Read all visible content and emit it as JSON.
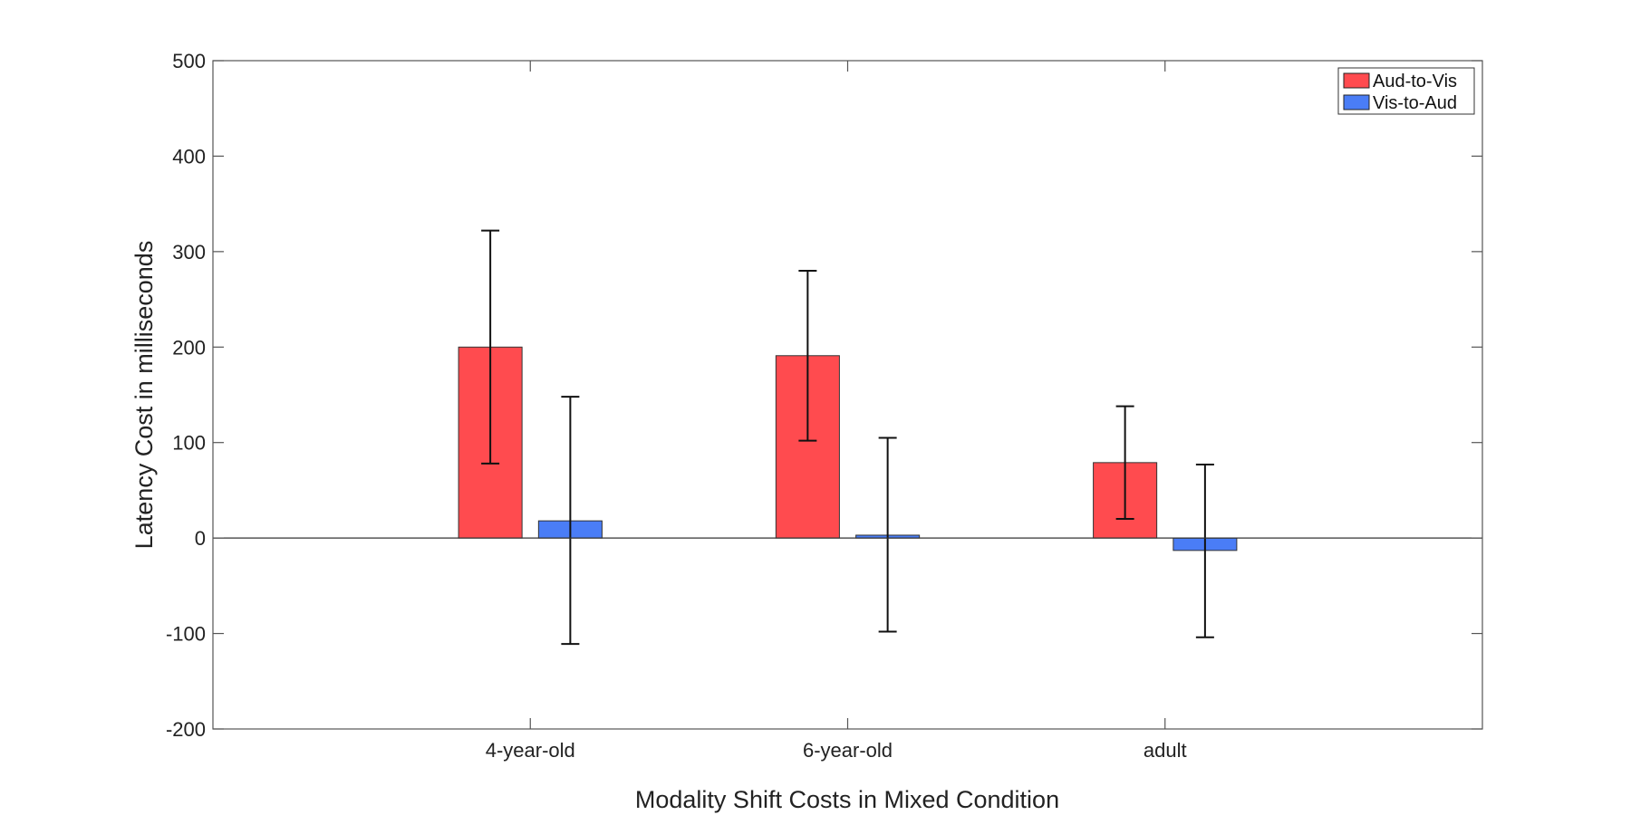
{
  "chart_data": {
    "type": "bar",
    "categories": [
      "4-year-old",
      "6-year-old",
      "adult"
    ],
    "series": [
      {
        "name": "Aud-to-Vis",
        "color": "#ff4b4f",
        "values": [
          200,
          191,
          79
        ],
        "error_low": [
          78,
          102,
          20
        ],
        "error_high": [
          322,
          280,
          138
        ]
      },
      {
        "name": "Vis-to-Aud",
        "color": "#4a7df6",
        "values": [
          18,
          3,
          -13
        ],
        "error_low": [
          -111,
          -98,
          -104
        ],
        "error_high": [
          148,
          105,
          77
        ]
      }
    ],
    "xlabel": "Modality Shift Costs in Mixed Condition",
    "ylabel": "Latency Cost in milliseconds",
    "ylim": [
      -200,
      500
    ],
    "yticks": [
      -200,
      -100,
      0,
      100,
      200,
      300,
      400,
      500
    ],
    "grid": false,
    "legend_position": "top-right"
  }
}
